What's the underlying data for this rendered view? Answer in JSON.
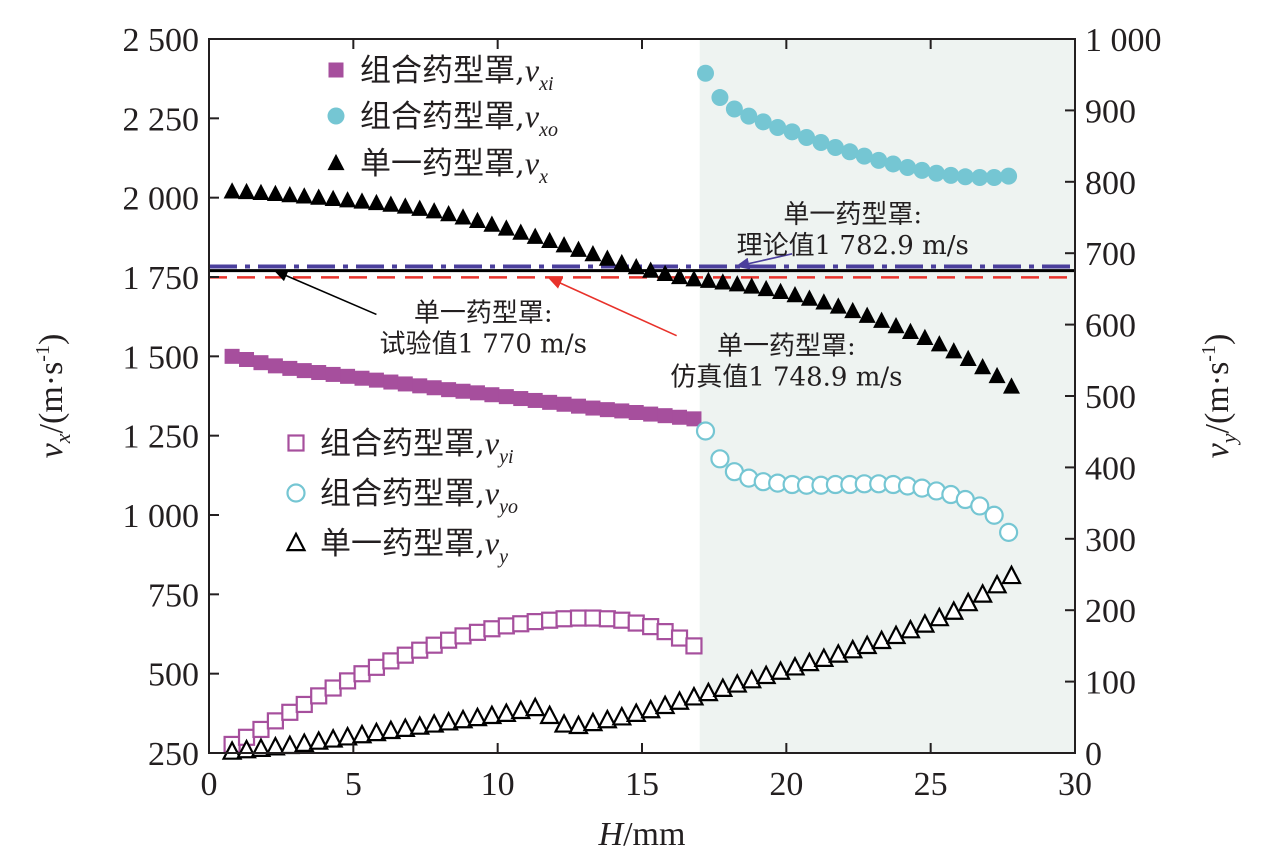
{
  "chart_data": {
    "type": "scatter",
    "xlabel": {
      "var": "H",
      "unit": "/mm"
    },
    "ylabel_left": {
      "var": "v",
      "sub": "x",
      "unit": "/(m·s",
      "exp": "-1",
      "close": ")"
    },
    "ylabel_right": {
      "var": "v",
      "sub": "y",
      "unit": "/(m·s",
      "exp": "-1",
      "close": ")"
    },
    "xlim": [
      0,
      30
    ],
    "ylim_left": [
      250,
      2500
    ],
    "ylim_right": [
      0,
      1000
    ],
    "x_ticks": [
      "0",
      "5",
      "10",
      "15",
      "20",
      "25",
      "30"
    ],
    "y_left_ticks": [
      "250",
      "500",
      "750",
      "1 000",
      "1 250",
      "1 500",
      "1 750",
      "2 000",
      "2 250",
      "2 500"
    ],
    "y_right_ticks": [
      "0",
      "100",
      "200",
      "300",
      "400",
      "500",
      "600",
      "700",
      "800",
      "900",
      "1 000"
    ],
    "shaded_region": {
      "x": [
        17,
        30
      ],
      "color": "#eef3f1"
    },
    "series": [
      {
        "name": "组合药型罩,",
        "sub": "xi",
        "axis": "left",
        "marker": "square",
        "filled": true,
        "color": "#a64f9d",
        "x": [
          0.8,
          1.3,
          1.8,
          2.3,
          2.8,
          3.3,
          3.8,
          4.3,
          4.8,
          5.3,
          5.8,
          6.3,
          6.8,
          7.3,
          7.8,
          8.3,
          8.8,
          9.3,
          9.8,
          10.3,
          10.8,
          11.3,
          11.8,
          12.3,
          12.8,
          13.3,
          13.8,
          14.3,
          14.8,
          15.3,
          15.8,
          16.3,
          16.8
        ],
        "y": [
          1500,
          1490,
          1480,
          1470,
          1462,
          1455,
          1449,
          1443,
          1437,
          1431,
          1425,
          1419,
          1413,
          1407,
          1401,
          1395,
          1390,
          1385,
          1379,
          1373,
          1367,
          1361,
          1355,
          1349,
          1343,
          1337,
          1332,
          1328,
          1323,
          1318,
          1313,
          1308,
          1303
        ]
      },
      {
        "name": "组合药型罩,",
        "sub": "xo",
        "axis": "right",
        "marker": "circle",
        "filled": true,
        "color": "#75c6d3",
        "x": [
          17.2,
          17.7,
          18.2,
          18.7,
          19.2,
          19.7,
          20.2,
          20.7,
          21.2,
          21.7,
          22.2,
          22.7,
          23.2,
          23.7,
          24.2,
          24.7,
          25.2,
          25.7,
          26.2,
          26.7,
          27.2,
          27.7
        ],
        "y": [
          952,
          918,
          902,
          892,
          884,
          876,
          870,
          862,
          855,
          848,
          842,
          836,
          830,
          825,
          820,
          816,
          812,
          809,
          807,
          806,
          806,
          808
        ]
      },
      {
        "name": "单一药型罩,",
        "sub": "x",
        "axis": "left",
        "marker": "triangle",
        "filled": true,
        "color": "#000000",
        "x": [
          0.8,
          1.3,
          1.8,
          2.3,
          2.8,
          3.3,
          3.8,
          4.3,
          4.8,
          5.3,
          5.8,
          6.3,
          6.8,
          7.3,
          7.8,
          8.3,
          8.8,
          9.3,
          9.8,
          10.3,
          10.8,
          11.3,
          11.8,
          12.3,
          12.8,
          13.3,
          13.8,
          14.3,
          14.8,
          15.3,
          15.8,
          16.3,
          16.8,
          17.3,
          17.8,
          18.3,
          18.8,
          19.3,
          19.8,
          20.3,
          20.8,
          21.3,
          21.8,
          22.3,
          22.8,
          23.3,
          23.8,
          24.3,
          24.8,
          25.3,
          25.8,
          26.3,
          26.8,
          27.3,
          27.8
        ],
        "y": [
          2020,
          2018,
          2015,
          2012,
          2008,
          2004,
          2000,
          1996,
          1992,
          1988,
          1983,
          1978,
          1972,
          1965,
          1957,
          1948,
          1938,
          1927,
          1915,
          1903,
          1890,
          1877,
          1864,
          1850,
          1836,
          1822,
          1808,
          1794,
          1781,
          1770,
          1760,
          1750,
          1743,
          1738,
          1733,
          1727,
          1720,
          1712,
          1703,
          1693,
          1682,
          1670,
          1657,
          1643,
          1628,
          1612,
          1595,
          1577,
          1558,
          1538,
          1516,
          1492,
          1466,
          1438,
          1405
        ]
      },
      {
        "name": "组合药型罩,",
        "sub": "yi",
        "axis": "right",
        "marker": "square",
        "filled": false,
        "color": "#a64f9d",
        "x": [
          0.8,
          1.3,
          1.8,
          2.3,
          2.8,
          3.3,
          3.8,
          4.3,
          4.8,
          5.3,
          5.8,
          6.3,
          6.8,
          7.3,
          7.8,
          8.3,
          8.8,
          9.3,
          9.8,
          10.3,
          10.8,
          11.3,
          11.8,
          12.3,
          12.8,
          13.3,
          13.8,
          14.3,
          14.8,
          15.3,
          15.8,
          16.3,
          16.8
        ],
        "y": [
          12,
          22,
          33,
          45,
          57,
          68,
          80,
          91,
          101,
          111,
          120,
          129,
          137,
          144,
          151,
          158,
          164,
          169,
          174,
          178,
          181,
          184,
          186,
          188,
          189,
          189,
          188,
          186,
          182,
          177,
          170,
          161,
          150
        ]
      },
      {
        "name": "组合药型罩,",
        "sub": "yo",
        "axis": "right",
        "marker": "circle",
        "filled": false,
        "color": "#75c6d3",
        "x": [
          17.2,
          17.7,
          18.2,
          18.7,
          19.2,
          19.7,
          20.2,
          20.7,
          21.2,
          21.7,
          22.2,
          22.7,
          23.2,
          23.7,
          24.2,
          24.7,
          25.2,
          25.7,
          26.2,
          26.7,
          27.2,
          27.7
        ],
        "y": [
          451,
          412,
          394,
          385,
          380,
          378,
          376,
          375,
          375,
          376,
          376,
          377,
          377,
          376,
          374,
          371,
          367,
          362,
          355,
          346,
          333,
          309
        ]
      },
      {
        "name": "单一药型罩,",
        "sub": "y",
        "axis": "right",
        "marker": "triangle",
        "filled": false,
        "color": "#000000",
        "x": [
          0.8,
          1.3,
          1.8,
          2.3,
          2.8,
          3.3,
          3.8,
          4.3,
          4.8,
          5.3,
          5.8,
          6.3,
          6.8,
          7.3,
          7.8,
          8.3,
          8.8,
          9.3,
          9.8,
          10.3,
          10.8,
          11.3,
          11.8,
          12.3,
          12.8,
          13.3,
          13.8,
          14.3,
          14.8,
          15.3,
          15.8,
          16.3,
          16.8,
          17.3,
          17.8,
          18.3,
          18.8,
          19.3,
          19.8,
          20.3,
          20.8,
          21.3,
          21.8,
          22.3,
          22.8,
          23.3,
          23.8,
          24.3,
          24.8,
          25.3,
          25.8,
          26.3,
          26.8,
          27.3,
          27.8
        ],
        "y": [
          2,
          4,
          6,
          8,
          10,
          13,
          16,
          19,
          22,
          25,
          28,
          31,
          34,
          37,
          40,
          43,
          46,
          49,
          52,
          55,
          59,
          63,
          52,
          40,
          38,
          42,
          46,
          50,
          55,
          60,
          66,
          72,
          78,
          84,
          90,
          96,
          102,
          108,
          114,
          120,
          126,
          132,
          138,
          144,
          150,
          157,
          164,
          172,
          180,
          189,
          198,
          210,
          222,
          235,
          248
        ]
      }
    ],
    "reference_lines": [
      {
        "axis": "left",
        "value": 1782.9,
        "color": "#4b3f9c",
        "style": "dashdot"
      },
      {
        "axis": "left",
        "value": 1770,
        "color": "#000000",
        "style": "solid"
      },
      {
        "axis": "left",
        "value": 1748.9,
        "color": "#e8322b",
        "style": "dashed"
      }
    ],
    "annotations": [
      {
        "line1": "单一药型罩:",
        "line2": "理论值1 782.9 m/s",
        "color": "#4b3f9c",
        "text_x": 22.3,
        "text_y": 1920,
        "arrow_from": [
          20.2,
          1823
        ],
        "arrow_to": [
          18.3,
          1784
        ]
      },
      {
        "line1": "单一药型罩:",
        "line2": "试验值1 770 m/s",
        "color": "#000000",
        "text_x": 9.5,
        "text_y": 1610,
        "arrow_from": [
          5.8,
          1632
        ],
        "arrow_to": [
          2.3,
          1769
        ]
      },
      {
        "line1": "单一药型罩:",
        "line2": "仿真值1 748.9 m/s",
        "color": "#e8322b",
        "text_x": 20.0,
        "text_y": 1505,
        "arrow_from": [
          16.2,
          1565
        ],
        "arrow_to": [
          11.8,
          1746
        ]
      }
    ],
    "legend_top": {
      "position": "top-left"
    },
    "legend_bottom": {
      "position": "middle-left"
    }
  }
}
